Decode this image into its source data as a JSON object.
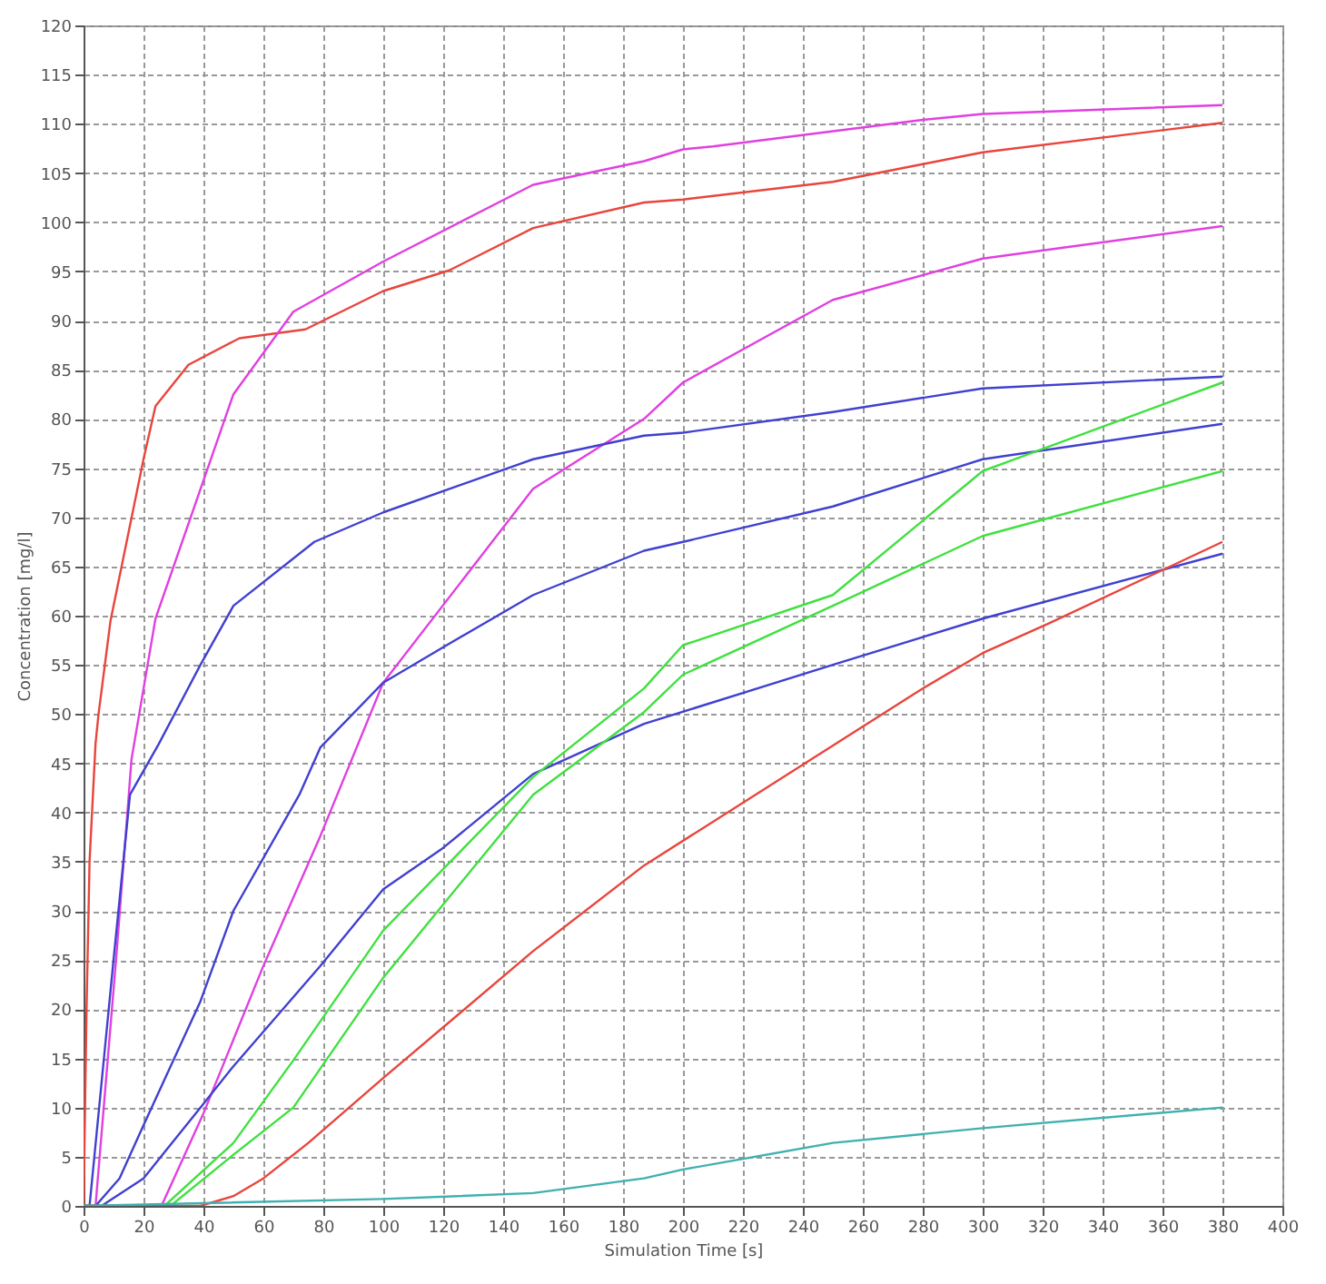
{
  "chart_data": {
    "type": "line",
    "xlabel": "Simulation Time [s]",
    "ylabel": "Concentration [mg/l]",
    "xlim": [
      0,
      400
    ],
    "ylim": [
      0,
      120
    ],
    "xticks": [
      0,
      20,
      40,
      60,
      80,
      100,
      120,
      140,
      160,
      180,
      200,
      220,
      240,
      260,
      280,
      300,
      320,
      340,
      360,
      380,
      400
    ],
    "yticks": [
      0,
      5,
      10,
      15,
      20,
      25,
      30,
      35,
      40,
      45,
      50,
      55,
      60,
      65,
      70,
      75,
      80,
      85,
      90,
      95,
      100,
      105,
      110,
      115,
      120
    ],
    "grid": true,
    "line_style": "solid",
    "series": [
      {
        "color": "#e8453c",
        "x": [
          0,
          1,
          2,
          4,
          5,
          9,
          20,
          24,
          35,
          52,
          74,
          100,
          122,
          150,
          187,
          200,
          250,
          280,
          300,
          380
        ],
        "values": [
          0,
          20,
          35,
          47,
          50,
          59.5,
          75.9,
          81.3,
          85.5,
          88.2,
          89.1,
          93,
          95.1,
          99.4,
          102,
          102.3,
          104.1,
          105.9,
          107.1,
          110.1
        ]
      },
      {
        "color": "#e040e0",
        "x": [
          0,
          4,
          11,
          16,
          24,
          50,
          70,
          100,
          150,
          187,
          200,
          210,
          280,
          300,
          380
        ],
        "values": [
          0,
          0,
          25.6,
          45.4,
          59.7,
          82.5,
          90.9,
          96,
          103.8,
          106.2,
          107.4,
          107.7,
          110.4,
          111,
          111.9
        ]
      },
      {
        "color": "#e040e0",
        "x": [
          0,
          26,
          40,
          60,
          79,
          100,
          150,
          187,
          200,
          250,
          300,
          380
        ],
        "values": [
          0,
          0,
          9.4,
          24.4,
          37.6,
          53.2,
          72.9,
          80,
          83.7,
          92.1,
          96.3,
          99.6
        ]
      },
      {
        "color": "#4040d0",
        "x": [
          0,
          2,
          10,
          15.5,
          25,
          39,
          50,
          77,
          100,
          150,
          187,
          200,
          250,
          300,
          380
        ],
        "values": [
          0,
          0,
          25,
          41.8,
          46.9,
          55,
          61,
          67.5,
          70.5,
          75.9,
          78.3,
          78.6,
          80.7,
          83.1,
          84.3
        ]
      },
      {
        "color": "#4040d0",
        "x": [
          0,
          4,
          12,
          20,
          39,
          50,
          72,
          79,
          100,
          120,
          150,
          187,
          200,
          250,
          300,
          380
        ],
        "values": [
          0,
          0,
          2.8,
          8.2,
          20.8,
          30,
          41.8,
          46.6,
          53.2,
          56.8,
          62.1,
          66.6,
          67.5,
          71.1,
          75.9,
          79.5
        ]
      },
      {
        "color": "#4040d0",
        "x": [
          0,
          6,
          20,
          39,
          50,
          79,
          100,
          120,
          150,
          187,
          250,
          300,
          380
        ],
        "values": [
          0,
          0,
          2.8,
          10,
          14.2,
          24.4,
          32.2,
          36.4,
          43.9,
          49,
          55,
          59.7,
          66.3
        ]
      },
      {
        "color": "#40e040",
        "x": [
          0,
          27,
          50,
          70,
          100,
          150,
          187,
          200,
          250,
          300,
          380
        ],
        "values": [
          0,
          0,
          6.4,
          14.8,
          28,
          43.6,
          52.6,
          57,
          62.1,
          74.7,
          83.7
        ]
      },
      {
        "color": "#40e040",
        "x": [
          0,
          29,
          50,
          70,
          100,
          150,
          187,
          200,
          250,
          300,
          380
        ],
        "values": [
          0,
          0,
          5.2,
          10,
          23.2,
          41.8,
          50.2,
          54,
          61,
          68.1,
          74.7
        ]
      },
      {
        "color": "#e8453c",
        "x": [
          0,
          39,
          50,
          60,
          75,
          100,
          150,
          187,
          280,
          300,
          322,
          380
        ],
        "values": [
          0,
          0,
          1,
          2.8,
          6.4,
          13,
          25.9,
          34.6,
          52.6,
          56.2,
          59.2,
          67.5
        ]
      },
      {
        "color": "#40b0b0",
        "x": [
          0,
          100,
          150,
          187,
          200,
          250,
          300,
          380
        ],
        "values": [
          0,
          0.7,
          1.3,
          2.8,
          3.7,
          6.4,
          7.9,
          10
        ]
      }
    ]
  }
}
